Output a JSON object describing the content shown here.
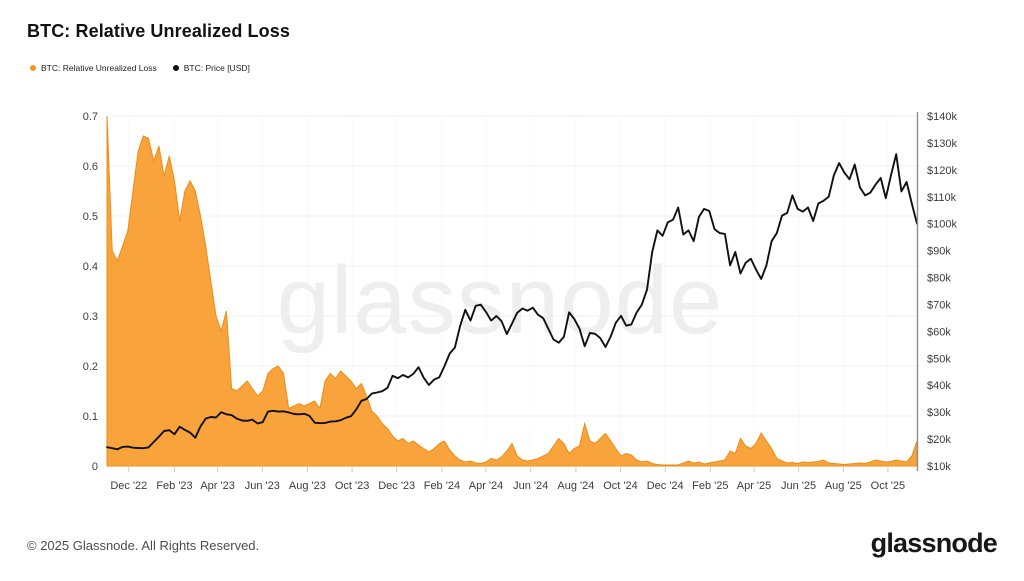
{
  "header": {
    "title": "BTC: Relative Unrealized Loss"
  },
  "legend": [
    {
      "label": "BTC: Relative Unrealized Loss",
      "color": "#f7941e"
    },
    {
      "label": "BTC: Price [USD]",
      "color": "#111111"
    }
  ],
  "watermark": "glassnode",
  "footer": {
    "copyright": "© 2025 Glassnode. All Rights Reserved.",
    "brand": "glassnode"
  },
  "chart_data": {
    "type": "area+line",
    "title": "BTC: Relative Unrealized Loss",
    "grid": "horizontal",
    "legend_position": "top-left",
    "x_tick_labels": [
      "Dec '22",
      "Feb '23",
      "Apr '23",
      "Jun '23",
      "Aug '23",
      "Oct '23",
      "Dec '23",
      "Feb '24",
      "Apr '24",
      "Jun '24",
      "Aug '24",
      "Oct '24",
      "Dec '24",
      "Feb '25",
      "Apr '25",
      "Jun '25",
      "Aug '25",
      "Oct '25"
    ],
    "x_tick_indices": [
      4.2,
      13.0,
      21.3,
      29.9,
      38.6,
      47.2,
      55.8,
      64.5,
      73.0,
      81.6,
      90.3,
      98.9,
      107.5,
      116.2,
      124.6,
      133.2,
      141.8,
      150.4
    ],
    "left_axis": {
      "series": "BTC: Relative Unrealized Loss",
      "min": 0,
      "max": 0.7,
      "ticks": [
        "0",
        "0.1",
        "0.2",
        "0.3",
        "0.4",
        "0.5",
        "0.6",
        "0.7"
      ]
    },
    "right_axis": {
      "series": "BTC: Price [USD]",
      "min": 10,
      "max": 140,
      "unit": "k USD",
      "ticks": [
        "$10k",
        "$20k",
        "$30k",
        "$40k",
        "$50k",
        "$60k",
        "$70k",
        "$80k",
        "$90k",
        "$100k",
        "$110k",
        "$120k",
        "$130k",
        "$140k"
      ]
    },
    "x_unit": "weeks from Nov 2022 to Nov 2025",
    "series": [
      {
        "name": "BTC: Relative Unrealized Loss",
        "type": "area",
        "axis": "left",
        "color": "#ee8c16",
        "fill": "#f8a33c",
        "values": [
          0.7,
          0.43,
          0.41,
          0.44,
          0.47,
          0.55,
          0.63,
          0.66,
          0.655,
          0.61,
          0.64,
          0.58,
          0.62,
          0.57,
          0.49,
          0.55,
          0.57,
          0.55,
          0.5,
          0.44,
          0.37,
          0.3,
          0.27,
          0.31,
          0.155,
          0.15,
          0.16,
          0.17,
          0.155,
          0.14,
          0.15,
          0.185,
          0.195,
          0.2,
          0.185,
          0.115,
          0.12,
          0.125,
          0.12,
          0.125,
          0.13,
          0.115,
          0.17,
          0.185,
          0.175,
          0.19,
          0.18,
          0.17,
          0.155,
          0.165,
          0.14,
          0.11,
          0.1,
          0.085,
          0.075,
          0.06,
          0.05,
          0.055,
          0.045,
          0.05,
          0.042,
          0.035,
          0.028,
          0.035,
          0.045,
          0.05,
          0.032,
          0.02,
          0.012,
          0.008,
          0.01,
          0.006,
          0.005,
          0.008,
          0.015,
          0.012,
          0.018,
          0.03,
          0.045,
          0.02,
          0.012,
          0.01,
          0.012,
          0.015,
          0.02,
          0.025,
          0.04,
          0.055,
          0.045,
          0.025,
          0.035,
          0.04,
          0.085,
          0.05,
          0.045,
          0.055,
          0.065,
          0.05,
          0.035,
          0.02,
          0.025,
          0.022,
          0.012,
          0.008,
          0.01,
          0.005,
          0.003,
          0.002,
          0.002,
          0.002,
          0.002,
          0.006,
          0.01,
          0.006,
          0.008,
          0.004,
          0.006,
          0.008,
          0.01,
          0.012,
          0.03,
          0.025,
          0.055,
          0.04,
          0.035,
          0.045,
          0.066,
          0.05,
          0.035,
          0.015,
          0.01,
          0.006,
          0.007,
          0.005,
          0.008,
          0.007,
          0.008,
          0.009,
          0.012,
          0.006,
          0.005,
          0.004,
          0.003,
          0.004,
          0.005,
          0.006,
          0.005,
          0.008,
          0.012,
          0.01,
          0.008,
          0.009,
          0.012,
          0.01,
          0.008,
          0.02,
          0.05
        ]
      },
      {
        "name": "BTC: Price [USD]",
        "type": "line",
        "axis": "right",
        "color": "#111111",
        "values": [
          17.0,
          16.6,
          16.2,
          17.1,
          17.2,
          16.8,
          16.7,
          16.6,
          16.9,
          18.9,
          20.9,
          23.0,
          23.3,
          21.8,
          24.6,
          23.4,
          22.4,
          20.5,
          24.7,
          27.6,
          28.2,
          28.0,
          30.0,
          29.2,
          28.9,
          27.6,
          26.9,
          26.8,
          27.2,
          25.8,
          26.3,
          30.2,
          30.5,
          30.2,
          30.3,
          29.9,
          29.3,
          29.2,
          29.4,
          28.6,
          26.1,
          25.9,
          26.0,
          26.5,
          26.6,
          27.0,
          27.9,
          28.5,
          31.0,
          34.2,
          34.9,
          36.9,
          37.3,
          37.8,
          39.0,
          43.5,
          42.6,
          43.8,
          42.9,
          44.2,
          46.7,
          42.8,
          40.1,
          42.1,
          43.0,
          47.1,
          51.8,
          54.0,
          62.0,
          68.0,
          64.0,
          69.5,
          69.9,
          67.2,
          64.0,
          65.7,
          63.8,
          59.0,
          62.9,
          66.9,
          68.5,
          67.7,
          68.8,
          66.2,
          64.9,
          61.0,
          57.0,
          55.8,
          58.0,
          67.1,
          64.6,
          61.0,
          54.5,
          59.4,
          59.1,
          57.5,
          54.2,
          58.1,
          63.2,
          65.8,
          62.1,
          62.6,
          67.0,
          69.9,
          75.5,
          89.5,
          97.5,
          95.5,
          100.5,
          101.5,
          106.0,
          96.0,
          97.5,
          93.5,
          102.5,
          105.5,
          104.7,
          98.0,
          96.5,
          96.2,
          84.5,
          89.5,
          81.5,
          85.5,
          87.0,
          83.0,
          79.5,
          84.5,
          93.5,
          96.5,
          103.0,
          104.0,
          110.5,
          105.5,
          104.5,
          106.0,
          101.0,
          107.5,
          108.5,
          110.0,
          118.0,
          122.5,
          119.0,
          116.5,
          122.0,
          113.5,
          110.5,
          111.5,
          114.5,
          117.0,
          109.5,
          118.0,
          125.8,
          112.0,
          115.5,
          107.5,
          100.0
        ]
      }
    ]
  }
}
